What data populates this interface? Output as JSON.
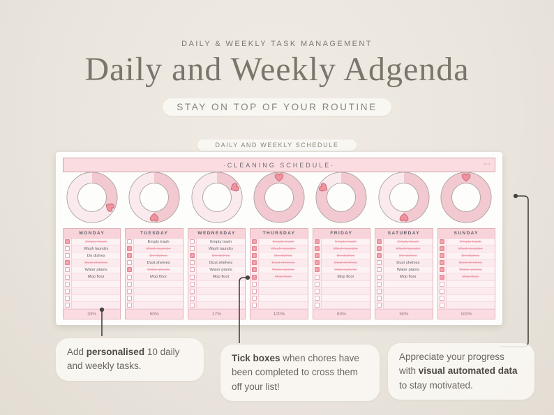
{
  "header": {
    "eyebrow": "DAILY & WEEKLY TASK MANAGEMENT",
    "title": "Daily and Weekly Adgenda",
    "tagline": "STAY ON TOP OF YOUR ROUTINE",
    "badge": "DAILY AND WEEKLY SCHEDULE"
  },
  "sheet": {
    "title": "·CLEANING SCHEDULE·",
    "corner_note": "date",
    "empty_rows_per_day": 4,
    "days": [
      {
        "name": "MONDAY",
        "percent": 33,
        "percent_label": "33%",
        "tasks": [
          {
            "label": "Empty trash",
            "done": true
          },
          {
            "label": "Wash laundry",
            "done": false
          },
          {
            "label": "Do dishes",
            "done": false
          },
          {
            "label": "Dust shelves",
            "done": true
          },
          {
            "label": "Water plants",
            "done": false
          },
          {
            "label": "Mop floor",
            "done": false
          }
        ]
      },
      {
        "name": "TUESDAY",
        "percent": 50,
        "percent_label": "50%",
        "tasks": [
          {
            "label": "Empty trash",
            "done": false
          },
          {
            "label": "Wash laundry",
            "done": true
          },
          {
            "label": "Do dishes",
            "done": true
          },
          {
            "label": "Dust shelves",
            "done": false
          },
          {
            "label": "Water plants",
            "done": true
          },
          {
            "label": "Mop floor",
            "done": false
          }
        ]
      },
      {
        "name": "WEDNESDAY",
        "percent": 17,
        "percent_label": "17%",
        "tasks": [
          {
            "label": "Empty trash",
            "done": false
          },
          {
            "label": "Wash laundry",
            "done": false
          },
          {
            "label": "Do dishes",
            "done": true
          },
          {
            "label": "Dust shelves",
            "done": false
          },
          {
            "label": "Water plants",
            "done": false
          },
          {
            "label": "Mop floor",
            "done": false
          }
        ]
      },
      {
        "name": "THURSDAY",
        "percent": 100,
        "percent_label": "100%",
        "tasks": [
          {
            "label": "Empty trash",
            "done": true
          },
          {
            "label": "Wash laundry",
            "done": true
          },
          {
            "label": "Do dishes",
            "done": true
          },
          {
            "label": "Dust shelves",
            "done": true
          },
          {
            "label": "Water plants",
            "done": true
          },
          {
            "label": "Mop floor",
            "done": true
          }
        ]
      },
      {
        "name": "FRIDAY",
        "percent": 83,
        "percent_label": "83%",
        "tasks": [
          {
            "label": "Empty trash",
            "done": true
          },
          {
            "label": "Wash laundry",
            "done": true
          },
          {
            "label": "Do dishes",
            "done": true
          },
          {
            "label": "Dust shelves",
            "done": true
          },
          {
            "label": "Water plants",
            "done": true
          },
          {
            "label": "Mop floor",
            "done": false
          }
        ]
      },
      {
        "name": "SATURDAY",
        "percent": 50,
        "percent_label": "50%",
        "tasks": [
          {
            "label": "Empty trash",
            "done": true
          },
          {
            "label": "Wash laundry",
            "done": true
          },
          {
            "label": "Do dishes",
            "done": true
          },
          {
            "label": "Dust shelves",
            "done": false
          },
          {
            "label": "Water plants",
            "done": false
          },
          {
            "label": "Mop floor",
            "done": false
          }
        ]
      },
      {
        "name": "SUNDAY",
        "percent": 100,
        "percent_label": "100%",
        "tasks": [
          {
            "label": "Empty trash",
            "done": true
          },
          {
            "label": "Wash laundry",
            "done": true
          },
          {
            "label": "Do dishes",
            "done": true
          },
          {
            "label": "Dust shelves",
            "done": true
          },
          {
            "label": "Water plants",
            "done": true
          },
          {
            "label": "Mop floor",
            "done": true
          }
        ]
      }
    ]
  },
  "callouts": [
    {
      "segments": [
        {
          "text": "Add ",
          "bold": false
        },
        {
          "text": "personalised",
          "bold": true
        },
        {
          "text": " 10 daily and weekly tasks.",
          "bold": false
        }
      ]
    },
    {
      "segments": [
        {
          "text": "Tick boxes",
          "bold": true
        },
        {
          "text": " when chores have been completed to cross them off your list!",
          "bold": false
        }
      ]
    },
    {
      "segments": [
        {
          "text": "Appreciate your progress with ",
          "bold": false
        },
        {
          "text": "visual automated data",
          "bold": true
        },
        {
          "text": " to stay motivated.",
          "bold": false
        }
      ]
    }
  ],
  "colors": {
    "page_bg": "#eae5dd",
    "title_text": "#7b756b",
    "sheet_header_bg": "#fadce1",
    "card_header_bg": "#f8d3da",
    "donut_base": "#faeaee",
    "donut_progress": "#f2c8d1",
    "heart_fill": "#f0939f",
    "heart_stroke": "#c96e78",
    "done_text": "#eda4b0",
    "checkbox_done": "#ef9aa6",
    "connector": "#45433e"
  }
}
